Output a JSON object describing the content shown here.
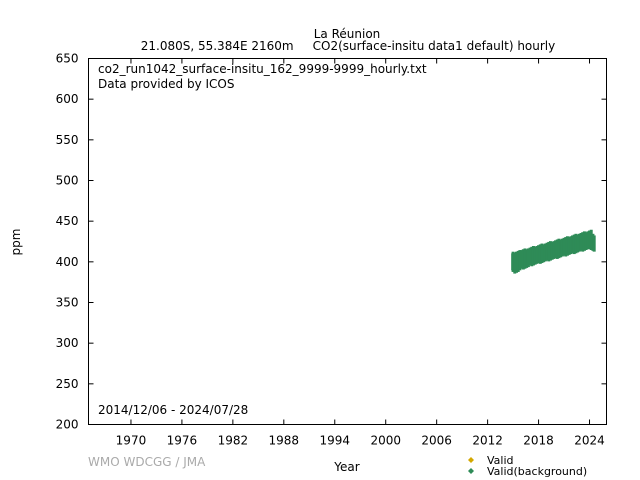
{
  "header": {
    "station": "La Réunion",
    "subtitle": "21.080S, 55.384E 2160m     CO2(surface-insitu data1 default) hourly"
  },
  "plot_notes": {
    "filename": "co2_run1042_surface-insitu_162_9999-9999_hourly.txt",
    "provider": "Data provided by ICOS",
    "period": "2014/12/06 - 2024/07/28"
  },
  "credit": "WMO WDCGG / JMA",
  "colors": {
    "valid": "#d4a800",
    "valid_background": "#2e8b57"
  },
  "chart_data": {
    "type": "scatter",
    "xlabel": "Year",
    "ylabel": "ppm",
    "xlim": [
      1965,
      2026
    ],
    "ylim": [
      200,
      650
    ],
    "xticks": [
      1970,
      1976,
      1982,
      1988,
      1994,
      2000,
      2006,
      2012,
      2018,
      2024
    ],
    "yticks": [
      200,
      250,
      300,
      350,
      400,
      450,
      500,
      550,
      600,
      650
    ],
    "grid": false,
    "legend_position": "bottom-right",
    "series": [
      {
        "name": "Valid",
        "marker": "diamond",
        "x": [],
        "y": []
      },
      {
        "name": "Valid(background)",
        "marker": "diamond",
        "x": [
          2014.95,
          2015.0,
          2015.2,
          2015.4,
          2015.6,
          2015.8,
          2016.0,
          2016.2,
          2016.4,
          2016.6,
          2016.8,
          2017.0,
          2017.2,
          2017.4,
          2017.6,
          2017.8,
          2018.0,
          2018.2,
          2018.4,
          2018.6,
          2018.8,
          2019.0,
          2019.2,
          2019.4,
          2019.6,
          2019.8,
          2020.0,
          2020.2,
          2020.4,
          2020.6,
          2020.8,
          2021.0,
          2021.2,
          2021.4,
          2021.6,
          2021.8,
          2022.0,
          2022.2,
          2022.4,
          2022.6,
          2022.8,
          2023.0,
          2023.2,
          2023.4,
          2023.6,
          2023.8,
          2024.0,
          2024.2,
          2024.4,
          2024.55
        ],
        "y_low": [
          392,
          390,
          388,
          389,
          390,
          392,
          394,
          393,
          394,
          395,
          396,
          398,
          397,
          398,
          399,
          400,
          401,
          400,
          401,
          402,
          403,
          404,
          403,
          404,
          405,
          406,
          407,
          406,
          407,
          408,
          409,
          410,
          409,
          410,
          411,
          412,
          413,
          412,
          413,
          414,
          415,
          416,
          415,
          416,
          417,
          418,
          418,
          417,
          416,
          415
        ],
        "y_high": [
          408,
          410,
          409,
          410,
          411,
          412,
          412,
          413,
          414,
          413,
          414,
          415,
          416,
          417,
          416,
          417,
          418,
          419,
          420,
          419,
          420,
          421,
          422,
          423,
          422,
          423,
          424,
          425,
          426,
          425,
          426,
          427,
          428,
          429,
          428,
          429,
          430,
          431,
          432,
          431,
          432,
          433,
          434,
          435,
          434,
          435,
          436,
          437,
          432,
          430
        ]
      }
    ]
  }
}
